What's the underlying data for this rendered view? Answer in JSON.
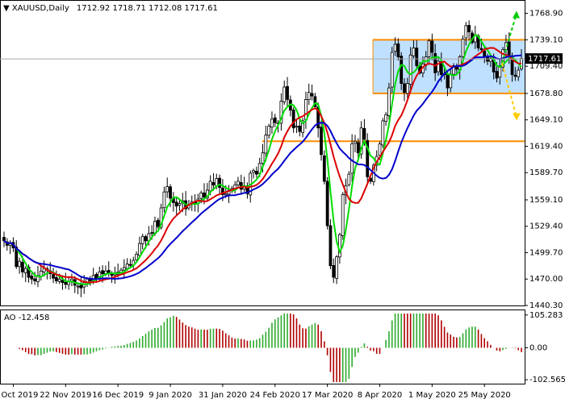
{
  "chart_data": [
    {
      "type": "candlestick",
      "symbol": "XAUUSD",
      "timeframe": "Daily",
      "title": "XAUUSD,Daily",
      "ohlc_text": "1712.92 1718.71 1712.08 1717.61",
      "open": 1712.92,
      "high": 1718.71,
      "low": 1712.08,
      "close": 1717.61,
      "current_price": "1717.61",
      "ylim": [
        1440.3,
        1783
      ],
      "yticks": [
        "1768.90",
        "1739.10",
        "1709.40",
        "1678.80",
        "1649.10",
        "1619.40",
        "1589.70",
        "1559.10",
        "1529.40",
        "1499.70",
        "1470.00",
        "1440.30"
      ],
      "xticks": [
        "31 Oct 2019",
        "22 Nov 2019",
        "16 Dec 2019",
        "9 Jan 2020",
        "31 Jan 2020",
        "24 Feb 2020",
        "17 Mar 2020",
        "8 Apr 2020",
        "1 May 2020",
        "25 May 2020"
      ],
      "series_close": [
        1513,
        1508,
        1511,
        1505,
        1484,
        1490,
        1478,
        1482,
        1472,
        1470,
        1468,
        1474,
        1479,
        1482,
        1480,
        1476,
        1471,
        1468,
        1470,
        1466,
        1464,
        1467,
        1470,
        1463,
        1462,
        1460,
        1466,
        1470,
        1468,
        1474,
        1471,
        1478,
        1476,
        1479,
        1477,
        1474,
        1476,
        1478,
        1480,
        1483,
        1487,
        1486,
        1491,
        1498,
        1510,
        1518,
        1513,
        1521,
        1522,
        1535,
        1529,
        1550,
        1568,
        1574,
        1561,
        1556,
        1552,
        1555,
        1558,
        1549,
        1553,
        1557,
        1555,
        1560,
        1567,
        1562,
        1570,
        1580,
        1576,
        1583,
        1573,
        1565,
        1566,
        1570,
        1572,
        1576,
        1580,
        1571,
        1575,
        1566,
        1589,
        1592,
        1588,
        1600,
        1612,
        1632,
        1642,
        1650,
        1646,
        1645,
        1670,
        1686,
        1672,
        1660,
        1640,
        1642,
        1636,
        1648,
        1672,
        1680,
        1676,
        1664,
        1640,
        1610,
        1580,
        1530,
        1485,
        1472,
        1495,
        1520,
        1565,
        1575,
        1588,
        1622,
        1625,
        1612,
        1640,
        1627,
        1585,
        1580,
        1598,
        1608,
        1622,
        1648,
        1655,
        1685,
        1725,
        1734,
        1720,
        1690,
        1680,
        1690,
        1722,
        1730,
        1710,
        1702,
        1712,
        1720,
        1738,
        1725,
        1702,
        1715,
        1700,
        1700,
        1685,
        1700,
        1710,
        1706,
        1720,
        1740,
        1755,
        1748,
        1736,
        1745,
        1730,
        1728,
        1720,
        1715,
        1718,
        1703,
        1696,
        1710,
        1728,
        1736,
        1722,
        1700,
        1698,
        1705,
        1718
      ],
      "levels": {
        "resistance": 1739.1,
        "support_mid": 1678.8,
        "support_low": 1625
      },
      "projections": [
        "up-to-1769",
        "down-to-1652"
      ],
      "indicator": {
        "label": "AO -12.458",
        "name": "AO",
        "value": -12.458,
        "yticks": [
          "105.283",
          "0.00",
          "-102.565"
        ],
        "ylim": [
          -110,
          110
        ]
      }
    }
  ],
  "colors": {
    "background": "#ffffff",
    "up_candle": "#000000",
    "down_candle": "#000000",
    "ma_fast": "#00dd00",
    "ma_mid": "#dd0000",
    "ma_slow": "#0000cc",
    "level_line": "#ff8c00",
    "channel_fill": "#bfe0ff",
    "arrow_up": "#00cc00",
    "arrow_down": "#ffcc00",
    "ao_up": "#2eaa2e",
    "ao_down": "#b00000",
    "price_tag_bg": "#000000",
    "price_tag_fg": "#ffffff"
  }
}
